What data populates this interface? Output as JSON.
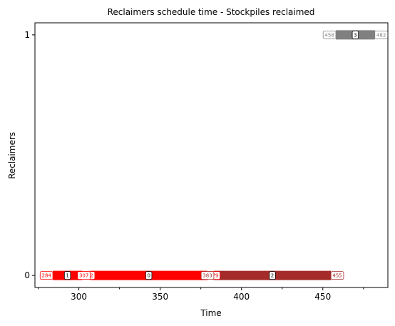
{
  "chart_data": {
    "type": "gantt",
    "title": "Reclaimers schedule time - Stockpiles reclaimed",
    "xlabel": "Time",
    "ylabel": "Reclaimers",
    "xlim": [
      273,
      490
    ],
    "ylim": [
      -0.05,
      1.05
    ],
    "xticks": [
      300,
      350,
      400,
      450
    ],
    "xminorticks": [
      275,
      325,
      375,
      425,
      475
    ],
    "yticks": [
      0,
      1
    ],
    "grid": false,
    "legend": "none",
    "tasks": [
      {
        "stockpile": "1",
        "reclaimer": 0,
        "start": 284,
        "end": 302,
        "color": "#ff0000",
        "start_label": "284",
        "end_label": "302"
      },
      {
        "stockpile": "0",
        "reclaimer": 0,
        "start": 307,
        "end": 379,
        "color": "#ff0000",
        "start_label": "307",
        "end_label": "379"
      },
      {
        "stockpile": "2",
        "reclaimer": 0,
        "start": 383,
        "end": 455,
        "color": "#a52a2a",
        "start_label": "383",
        "end_label": "455"
      },
      {
        "stockpile": "3",
        "reclaimer": 1,
        "start": 458,
        "end": 482,
        "color": "#808080",
        "start_label": "458",
        "end_label": "482"
      }
    ]
  }
}
